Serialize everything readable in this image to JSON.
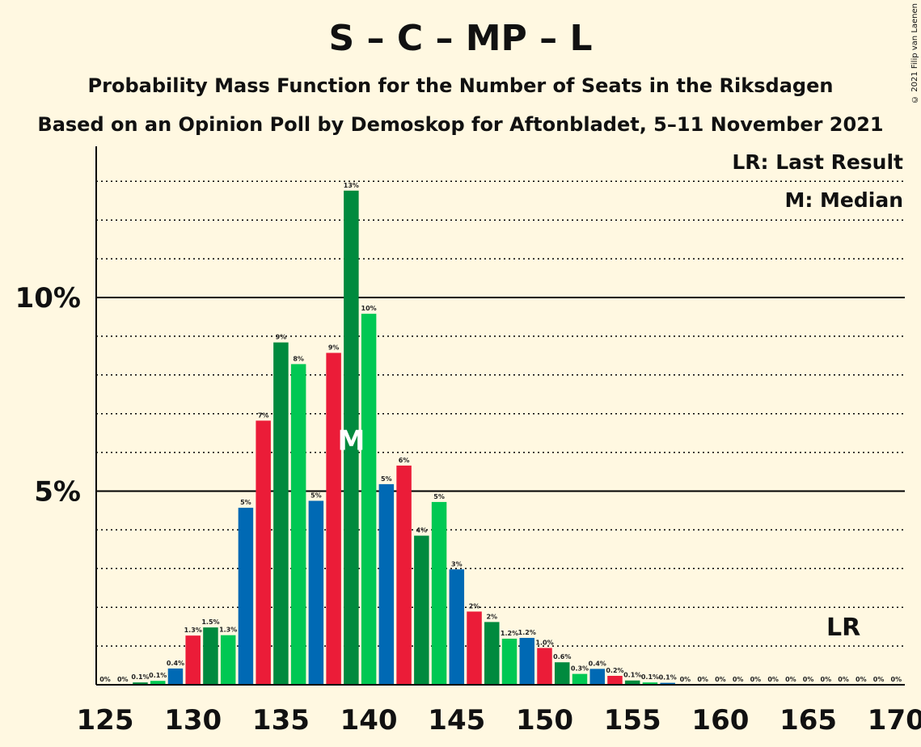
{
  "header": {
    "title": "S – C – MP – L",
    "subtitle1": "Probability Mass Function for the Number of Seats in the Riksdagen",
    "subtitle2": "Based on an Opinion Poll by Demoskop for Aftonbladet, 5–11 November 2021"
  },
  "legend": {
    "last_result": "LR: Last Result",
    "median": "M: Median"
  },
  "copyright": "© 2021 Filip van Laenen",
  "colors": {
    "background": "#fff8e1",
    "dark_green": "#008a3e",
    "green": "#00c853",
    "blue": "#0069b4",
    "red": "#eb1c38",
    "grid": "#000000"
  },
  "chart_data": {
    "type": "bar",
    "x": [
      125,
      126,
      127,
      128,
      129,
      130,
      131,
      132,
      133,
      134,
      135,
      136,
      137,
      138,
      139,
      140,
      141,
      142,
      143,
      144,
      145,
      146,
      147,
      148,
      149,
      150,
      151,
      152,
      153,
      154,
      155,
      156,
      157,
      158,
      159,
      160,
      161,
      162,
      163,
      164,
      165,
      166,
      167,
      168,
      169,
      170
    ],
    "values": [
      0,
      0,
      0.06,
      0.1,
      0.42,
      1.27,
      1.48,
      1.28,
      4.57,
      6.82,
      8.84,
      8.28,
      4.75,
      8.57,
      12.76,
      9.58,
      5.18,
      5.66,
      3.85,
      4.72,
      2.98,
      1.89,
      1.62,
      1.19,
      1.21,
      0.95,
      0.58,
      0.28,
      0.41,
      0.23,
      0.11,
      0.06,
      0.05,
      0,
      0,
      0,
      0,
      0,
      0,
      0,
      0,
      0,
      0,
      0,
      0,
      0
    ],
    "labels": [
      "0%",
      "0%",
      "0.1%",
      "0.1%",
      "0.4%",
      "1.3%",
      "1.5%",
      "1.3%",
      "5%",
      "7%",
      "9%",
      "8%",
      "5%",
      "9%",
      "13%",
      "10%",
      "5%",
      "6%",
      "4%",
      "5%",
      "3%",
      "2%",
      "2%",
      "1.2%",
      "1.2%",
      "1.0%",
      "0.6%",
      "0.3%",
      "0.4%",
      "0.2%",
      "0.1%",
      "0.1%",
      "0.1%",
      "0%",
      "0%",
      "0%",
      "0%",
      "0%",
      "0%",
      "0%",
      "0%",
      "0%",
      "0%",
      "0%",
      "0%",
      "0%"
    ],
    "bar_colors": [
      "dark_green",
      "green",
      "blue",
      "red"
    ],
    "x_tick_labels": [
      "125",
      "130",
      "135",
      "140",
      "145",
      "150",
      "155",
      "160",
      "165",
      "170"
    ],
    "y_tick_labels": [
      "5%",
      "10%"
    ],
    "ylim": [
      0,
      13.9
    ],
    "median": 139,
    "median_label": "M",
    "last_result": 167,
    "last_result_label": "LR",
    "grid": true
  }
}
